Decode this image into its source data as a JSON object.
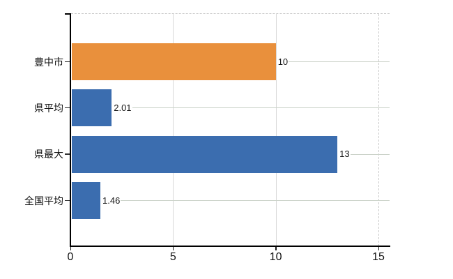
{
  "chart_data": {
    "type": "bar",
    "orientation": "horizontal",
    "title": "",
    "categories": [
      "豊中市",
      "県平均",
      "県最大",
      "全国平均"
    ],
    "values": [
      10,
      2.01,
      13,
      1.46
    ],
    "value_labels": [
      "10",
      "2.01",
      "13",
      "1.46"
    ],
    "highlight_index": 0,
    "colors": {
      "highlight_bar": "#E9903C",
      "default_bar": "#3B6DAF",
      "axis": "#000000",
      "gridline": "#d9d9d9",
      "leader_line": "#ccd3ca",
      "text": "#111111"
    },
    "x_axis": {
      "tick_labels": [
        "0",
        "5",
        "10",
        "15"
      ],
      "tick_values": [
        0,
        5,
        10,
        15
      ],
      "min": 0,
      "max": 15.55
    },
    "legend": "none",
    "grid": "vertical gridlines at 5/10/15 (15 dashed), dashed top border, leader lines from each value label to right edge"
  }
}
